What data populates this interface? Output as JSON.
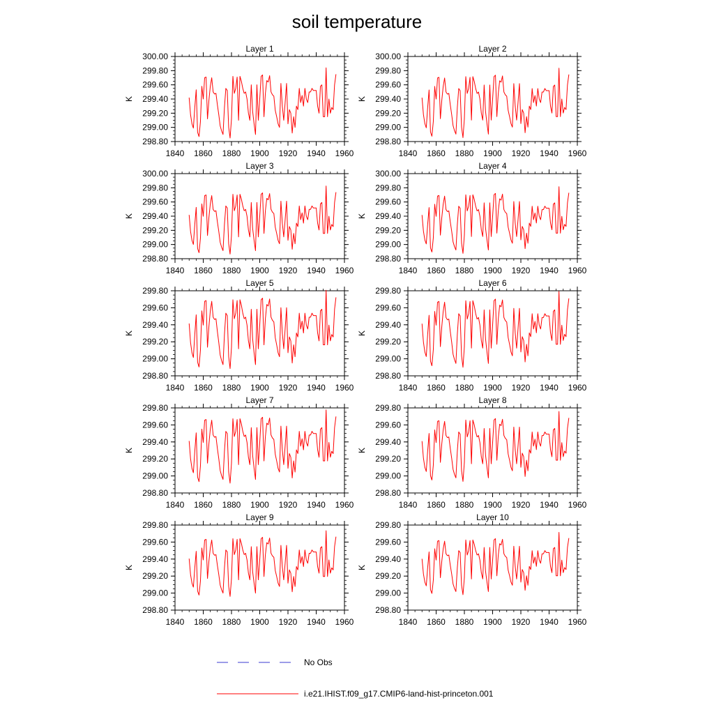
{
  "title": "soil temperature",
  "colors": {
    "model": "#ff0000",
    "obs": "#3a3ad0",
    "axis": "#000000",
    "background": "#ffffff"
  },
  "legend": {
    "items": [
      {
        "label": "No Obs",
        "style": "dashed",
        "color": "#3a3ad0"
      },
      {
        "label": "i.e21.IHIST.f09_g17.CMIP6-land-hist-princeton.001",
        "style": "solid",
        "color": "#ff0000"
      }
    ],
    "placement": "bottom-center"
  },
  "chart_data": {
    "type": "line",
    "layout": "5 rows x 2 columns of panels",
    "x": [
      1850,
      1851,
      1852,
      1853,
      1854,
      1855,
      1856,
      1857,
      1858,
      1859,
      1860,
      1861,
      1862,
      1863,
      1864,
      1865,
      1866,
      1867,
      1868,
      1869,
      1870,
      1871,
      1872,
      1873,
      1874,
      1875,
      1876,
      1877,
      1878,
      1879,
      1880,
      1881,
      1882,
      1883,
      1884,
      1885,
      1886,
      1887,
      1888,
      1889,
      1890,
      1891,
      1892,
      1893,
      1894,
      1895,
      1896,
      1897,
      1898,
      1899,
      1900,
      1901,
      1902,
      1903,
      1904,
      1905,
      1906,
      1907,
      1908,
      1909,
      1910,
      1911,
      1912,
      1913,
      1914,
      1915,
      1916,
      1917,
      1918,
      1919,
      1920,
      1921,
      1922,
      1923,
      1924,
      1925,
      1926,
      1927,
      1928,
      1929,
      1930,
      1931,
      1932,
      1933,
      1934,
      1935,
      1936,
      1937,
      1938,
      1939,
      1940,
      1941,
      1942,
      1943,
      1944,
      1945,
      1946,
      1947,
      1948,
      1949,
      1950,
      1951,
      1952,
      1953,
      1954
    ],
    "base_series": [
      299.42,
      299.18,
      299.05,
      298.99,
      299.28,
      299.53,
      298.93,
      298.87,
      299.08,
      299.58,
      299.4,
      299.7,
      299.71,
      299.12,
      299.38,
      299.58,
      299.7,
      299.5,
      299.47,
      299.48,
      299.32,
      299.18,
      299.02,
      298.95,
      298.9,
      299.28,
      299.55,
      299.52,
      299.0,
      298.85,
      299.12,
      299.72,
      299.48,
      299.55,
      299.71,
      299.1,
      299.72,
      299.65,
      299.55,
      299.48,
      299.5,
      299.4,
      299.2,
      299.1,
      299.6,
      299.22,
      299.05,
      298.9,
      299.6,
      299.1,
      299.4,
      299.72,
      299.74,
      299.15,
      299.48,
      299.66,
      299.64,
      299.73,
      299.5,
      299.46,
      299.44,
      299.24,
      299.15,
      299.05,
      299.0,
      299.62,
      299.3,
      299.1,
      299.35,
      299.62,
      299.05,
      299.25,
      299.2,
      298.92,
      299.15,
      299.0,
      299.3,
      299.25,
      299.55,
      299.35,
      299.45,
      299.3,
      299.55,
      299.4,
      299.35,
      299.5,
      299.5,
      299.55,
      299.52,
      299.52,
      299.52,
      299.3,
      299.2,
      299.58,
      299.6,
      299.15,
      299.15,
      299.84,
      299.15,
      299.4,
      299.2,
      299.28,
      299.25,
      299.6,
      299.75
    ],
    "series_name": "i.e21.IHIST.f09_g17.CMIP6-land-hist-princeton.001",
    "panels": [
      {
        "title": "Layer 1",
        "ylabel": "K",
        "xlim": [
          1840,
          1960
        ],
        "ylim": [
          298.8,
          300.0
        ],
        "yticks": [
          "298.80",
          "299.00",
          "299.20",
          "299.40",
          "299.60",
          "299.80",
          "300.00"
        ],
        "xticks": [
          "1840",
          "1860",
          "1880",
          "1900",
          "1920",
          "1940",
          "1960"
        ],
        "damp": 1.0
      },
      {
        "title": "Layer 2",
        "ylabel": "K",
        "xlim": [
          1840,
          1960
        ],
        "ylim": [
          298.8,
          300.0
        ],
        "yticks": [
          "298.80",
          "299.00",
          "299.20",
          "299.40",
          "299.60",
          "299.80",
          "300.00"
        ],
        "xticks": [
          "1840",
          "1860",
          "1880",
          "1900",
          "1920",
          "1940",
          "1960"
        ],
        "damp": 0.99
      },
      {
        "title": "Layer 3",
        "ylabel": "K",
        "xlim": [
          1840,
          1960
        ],
        "ylim": [
          298.8,
          300.0
        ],
        "yticks": [
          "298.80",
          "299.00",
          "299.20",
          "299.40",
          "299.60",
          "299.80",
          "300.00"
        ],
        "xticks": [
          "1840",
          "1860",
          "1880",
          "1900",
          "1920",
          "1940",
          "1960"
        ],
        "damp": 0.97
      },
      {
        "title": "Layer 4",
        "ylabel": "K",
        "xlim": [
          1840,
          1960
        ],
        "ylim": [
          298.8,
          300.0
        ],
        "yticks": [
          "298.80",
          "299.00",
          "299.20",
          "299.40",
          "299.60",
          "299.80",
          "300.00"
        ],
        "xticks": [
          "1840",
          "1860",
          "1880",
          "1900",
          "1920",
          "1940",
          "1960"
        ],
        "damp": 0.95
      },
      {
        "title": "Layer 5",
        "ylabel": "K",
        "xlim": [
          1840,
          1960
        ],
        "ylim": [
          298.8,
          299.8
        ],
        "yticks": [
          "298.80",
          "299.00",
          "299.20",
          "299.40",
          "299.60",
          "299.80"
        ],
        "xticks": [
          "1840",
          "1860",
          "1880",
          "1900",
          "1920",
          "1940",
          "1960"
        ],
        "damp": 0.93
      },
      {
        "title": "Layer 6",
        "ylabel": "K",
        "xlim": [
          1840,
          1960
        ],
        "ylim": [
          298.8,
          299.8
        ],
        "yticks": [
          "298.80",
          "299.00",
          "299.20",
          "299.40",
          "299.60",
          "299.80"
        ],
        "xticks": [
          "1840",
          "1860",
          "1880",
          "1900",
          "1920",
          "1940",
          "1960"
        ],
        "damp": 0.9
      },
      {
        "title": "Layer 7",
        "ylabel": "K",
        "xlim": [
          1840,
          1960
        ],
        "ylim": [
          298.8,
          299.8
        ],
        "yticks": [
          "298.80",
          "299.00",
          "299.20",
          "299.40",
          "299.60",
          "299.80"
        ],
        "xticks": [
          "1840",
          "1860",
          "1880",
          "1900",
          "1920",
          "1940",
          "1960"
        ],
        "damp": 0.87
      },
      {
        "title": "Layer 8",
        "ylabel": "K",
        "xlim": [
          1840,
          1960
        ],
        "ylim": [
          298.8,
          299.8
        ],
        "yticks": [
          "298.80",
          "299.00",
          "299.20",
          "299.40",
          "299.60",
          "299.80"
        ],
        "xticks": [
          "1840",
          "1860",
          "1880",
          "1900",
          "1920",
          "1940",
          "1960"
        ],
        "damp": 0.83
      },
      {
        "title": "Layer 9",
        "ylabel": "K",
        "xlim": [
          1840,
          1960
        ],
        "ylim": [
          298.8,
          299.8
        ],
        "yticks": [
          "298.80",
          "299.00",
          "299.20",
          "299.40",
          "299.60",
          "299.80"
        ],
        "xticks": [
          "1840",
          "1860",
          "1880",
          "1900",
          "1920",
          "1940",
          "1960"
        ],
        "damp": 0.78
      },
      {
        "title": "Layer 10",
        "ylabel": "K",
        "xlim": [
          1840,
          1960
        ],
        "ylim": [
          298.8,
          299.8
        ],
        "yticks": [
          "298.80",
          "299.00",
          "299.20",
          "299.40",
          "299.60",
          "299.80"
        ],
        "xticks": [
          "1840",
          "1860",
          "1880",
          "1900",
          "1920",
          "1940",
          "1960"
        ],
        "damp": 0.74
      }
    ]
  }
}
